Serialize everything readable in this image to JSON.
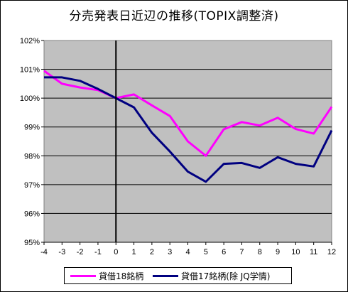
{
  "chart_data": {
    "type": "line",
    "title": "分売発表日近辺の推移(TOPIX調整済)",
    "xlabel": "",
    "ylabel": "",
    "x": [
      -4,
      -3,
      -2,
      -1,
      0,
      1,
      2,
      3,
      4,
      5,
      6,
      7,
      8,
      9,
      10,
      11,
      12
    ],
    "ylim": [
      95,
      102
    ],
    "yticks": [
      "95%",
      "96%",
      "97%",
      "98%",
      "99%",
      "100%",
      "101%",
      "102%"
    ],
    "grid": true,
    "legend": "bottom",
    "series": [
      {
        "name": "貸借18銘柄",
        "color": "#ff00ff",
        "values": [
          100.95,
          100.5,
          100.37,
          100.28,
          100.0,
          100.13,
          99.75,
          99.38,
          98.5,
          98.0,
          98.92,
          99.17,
          99.05,
          99.32,
          98.93,
          98.77,
          99.7
        ]
      },
      {
        "name": "貸借17銘柄(除 JQ学情)",
        "color": "#000080",
        "values": [
          100.72,
          100.72,
          100.6,
          100.32,
          100.0,
          99.68,
          98.8,
          98.15,
          97.45,
          97.1,
          97.72,
          97.75,
          97.58,
          97.95,
          97.72,
          97.63,
          98.88
        ]
      }
    ],
    "vline_x": 0
  },
  "legend_labels": [
    "貸借18銘柄",
    "貸借17銘柄(除 JQ学情)"
  ]
}
